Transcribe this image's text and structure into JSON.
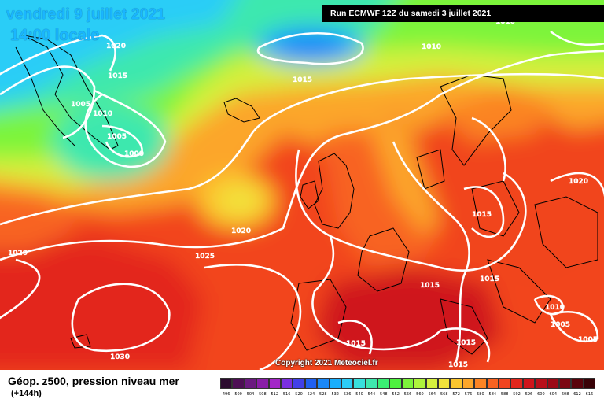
{
  "header": {
    "date": "vendredi 9 juillet 2021",
    "local_time": "14:00 locale",
    "run_info": "Run ECMWF 12Z du samedi 3 juillet 2021"
  },
  "footer": {
    "product": "Géop. z500, pression niveau mer",
    "lead_time": "(+144h)",
    "copyright": "Copyright 2021 Meteociel.fr"
  },
  "isobar_labels": [
    "1020",
    "1015",
    "1005",
    "1010",
    "1005",
    "1000",
    "1015",
    "1010",
    "1010",
    "1020",
    "1025",
    "1020",
    "1030",
    "1015",
    "1015",
    "1015",
    "1020",
    "1010",
    "1005",
    "1005",
    "1015",
    "1015",
    "1015"
  ],
  "legend": {
    "values": [
      "496",
      "500",
      "504",
      "508",
      "512",
      "516",
      "520",
      "524",
      "528",
      "532",
      "536",
      "540",
      "544",
      "548",
      "552",
      "556",
      "560",
      "564",
      "568",
      "572",
      "576",
      "580",
      "584",
      "588",
      "592",
      "596",
      "600",
      "604",
      "608",
      "612",
      "616"
    ],
    "colors": [
      "#2b0b2e",
      "#4e0f55",
      "#6b1a80",
      "#8a1ea8",
      "#a327c8",
      "#7b2fe0",
      "#4240e8",
      "#2060f0",
      "#1a88f7",
      "#19aefc",
      "#2ccdf7",
      "#38e0dd",
      "#3ee8ae",
      "#3aed73",
      "#4ef23f",
      "#7cf43a",
      "#aef43c",
      "#d6f03e",
      "#f2e23a",
      "#fbc62f",
      "#fca62a",
      "#fb8424",
      "#f86321",
      "#f1441f",
      "#e3271d",
      "#cf151b",
      "#b80f1a",
      "#9b0a16",
      "#7c0612",
      "#5a030c",
      "#390207"
    ]
  }
}
